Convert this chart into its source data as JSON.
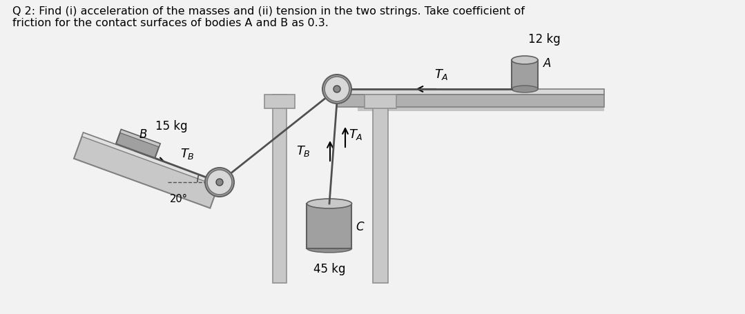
{
  "title_line1": "Q 2: Find (i) acceleration of the masses and (ii) tension in the two strings. Take coefficient of",
  "title_line2": "friction for the contact surfaces of bodies A and B as 0.3.",
  "bg_color": "#f2f2f2",
  "mass_B_kg": "15 kg",
  "mass_A_kg": "12 kg",
  "mass_C_kg": "45 kg",
  "angle_label": "20°",
  "label_B": "B",
  "label_A": "A",
  "label_C": "C",
  "col_ramp_face": "#c8c8c8",
  "col_ramp_edge": "#808080",
  "col_ramp_top": "#e0e0e0",
  "col_block_face": "#a0a0a0",
  "col_block_top": "#c8c8c8",
  "col_block_edge": "#606060",
  "col_surface_top": "#d8d8d8",
  "col_surface_bot": "#b0b0b0",
  "col_surface_edge": "#808080",
  "col_wall": "#c8c8c8",
  "col_wall_edge": "#909090",
  "col_pulley_out": "#b0b0b0",
  "col_pulley_mid": "#d8d8d8",
  "col_pulley_hub": "#888888",
  "col_rope": "#505050",
  "col_text": "#000000",
  "col_arrow": "#000000"
}
